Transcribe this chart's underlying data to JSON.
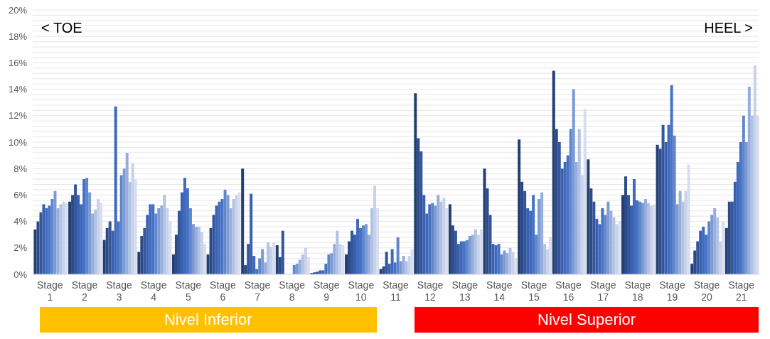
{
  "chart_data": {
    "type": "bar",
    "categories": [
      "Stage 1",
      "Stage 2",
      "Stage 3",
      "Stage 4",
      "Stage 5",
      "Stage 6",
      "Stage 7",
      "Stage 8",
      "Stage 9",
      "Stage 10",
      "Stage 11",
      "Stage 12",
      "Stage 13",
      "Stage 14",
      "Stage 15",
      "Stage 16",
      "Stage 17",
      "Stage 18",
      "Stage 19",
      "Stage 20",
      "Stage 21"
    ],
    "series": [
      {
        "color": "#243f72",
        "values": [
          3.4,
          5.5,
          2.6,
          1.7,
          1.5,
          1.5,
          8.0,
          2.2,
          0.1,
          1.5,
          0.4,
          13.7,
          5.3,
          8.0,
          10.2,
          15.4,
          8.7,
          6.0,
          9.8,
          0.8,
          3.5
        ]
      },
      {
        "color": "#2b4a86",
        "values": [
          4.0,
          6.0,
          3.5,
          2.9,
          3.0,
          3.5,
          0.7,
          1.3,
          0.15,
          2.5,
          0.6,
          10.3,
          3.7,
          6.5,
          7.0,
          11.0,
          6.5,
          7.4,
          9.5,
          1.8,
          5.5
        ]
      },
      {
        "color": "#32559b",
        "values": [
          4.7,
          6.8,
          4.0,
          3.5,
          4.8,
          4.5,
          2.3,
          3.3,
          0.2,
          3.3,
          1.7,
          9.3,
          3.3,
          4.5,
          6.3,
          10.0,
          5.5,
          6.0,
          11.3,
          2.5,
          5.5
        ]
      },
      {
        "color": "#3960b0",
        "values": [
          5.3,
          6.0,
          3.3,
          4.5,
          6.2,
          5.2,
          6.1,
          null,
          0.3,
          3.0,
          0.8,
          6.0,
          2.3,
          2.3,
          5.0,
          8.0,
          4.2,
          5.2,
          10.0,
          3.3,
          7.0
        ]
      },
      {
        "color": "#4069bd",
        "values": [
          5.0,
          5.3,
          12.7,
          5.3,
          7.3,
          5.5,
          1.4,
          null,
          0.3,
          4.2,
          1.9,
          4.6,
          2.5,
          2.2,
          4.8,
          8.5,
          3.8,
          7.2,
          11.3,
          3.6,
          8.5
        ]
      },
      {
        "color": "#4472c4",
        "values": [
          5.2,
          7.2,
          4.0,
          5.3,
          6.5,
          5.7,
          0.4,
          null,
          0.8,
          3.5,
          0.9,
          5.3,
          2.5,
          2.3,
          6.0,
          9.0,
          5.0,
          5.6,
          14.3,
          3.0,
          10.0
        ]
      },
      {
        "color": "#5f86cc",
        "values": [
          5.7,
          7.3,
          7.5,
          4.6,
          5.0,
          6.4,
          1.2,
          0.7,
          1.5,
          3.7,
          2.8,
          5.4,
          2.6,
          1.5,
          3.0,
          11.0,
          4.5,
          5.5,
          10.5,
          4.0,
          12.0
        ]
      },
      {
        "color": "#7b9ad4",
        "values": [
          6.3,
          6.2,
          8.0,
          5.0,
          3.8,
          6.0,
          1.9,
          0.8,
          1.6,
          3.8,
          1.0,
          5.2,
          2.9,
          1.8,
          5.7,
          14.0,
          5.5,
          5.4,
          5.3,
          4.5,
          10.0
        ]
      },
      {
        "color": "#97aedc",
        "values": [
          5.0,
          4.6,
          9.2,
          5.2,
          3.6,
          5.0,
          0.9,
          1.1,
          2.3,
          3.0,
          1.4,
          6.0,
          3.0,
          1.6,
          6.2,
          8.5,
          4.8,
          5.7,
          6.3,
          5.0,
          14.2
        ]
      },
      {
        "color": "#b2c2e4",
        "values": [
          5.3,
          4.9,
          7.0,
          6.0,
          3.6,
          5.7,
          2.4,
          1.5,
          3.3,
          5.0,
          1.0,
          5.5,
          3.4,
          2.0,
          2.3,
          11.0,
          4.3,
          5.4,
          5.5,
          4.3,
          12.0
        ]
      },
      {
        "color": "#c8d2ea",
        "values": [
          5.5,
          5.7,
          8.4,
          5.0,
          3.2,
          6.0,
          2.1,
          2.0,
          2.3,
          6.7,
          1.4,
          5.8,
          3.0,
          1.7,
          1.9,
          7.5,
          3.8,
          5.2,
          6.3,
          2.5,
          15.8
        ]
      },
      {
        "color": "#d8deef",
        "values": [
          5.4,
          5.4,
          7.2,
          4.0,
          2.3,
          6.2,
          2.4,
          1.3,
          2.2,
          5.0,
          1.9,
          5.0,
          3.4,
          1.2,
          2.8,
          12.5,
          4.0,
          5.3,
          8.3,
          4.0,
          12.0
        ]
      }
    ],
    "ylim": [
      0,
      20
    ],
    "yticks": [
      {
        "value": 0,
        "label": "0%"
      },
      {
        "value": 0.4,
        "label": null
      },
      {
        "value": 0.8,
        "label": null
      },
      {
        "value": 1.2,
        "label": null
      },
      {
        "value": 1.6,
        "label": null
      },
      {
        "value": 2,
        "label": "2%"
      },
      {
        "value": 2.4,
        "label": null
      },
      {
        "value": 2.8,
        "label": null
      },
      {
        "value": 3.2,
        "label": null
      },
      {
        "value": 3.6,
        "label": null
      },
      {
        "value": 4,
        "label": "4%"
      },
      {
        "value": 4.4,
        "label": null
      },
      {
        "value": 4.8,
        "label": null
      },
      {
        "value": 5.2,
        "label": null
      },
      {
        "value": 5.6,
        "label": null
      },
      {
        "value": 6,
        "label": "6%"
      },
      {
        "value": 6.4,
        "label": null
      },
      {
        "value": 6.8,
        "label": null
      },
      {
        "value": 7.2,
        "label": null
      },
      {
        "value": 7.6,
        "label": null
      },
      {
        "value": 8,
        "label": "8%"
      },
      {
        "value": 8.4,
        "label": null
      },
      {
        "value": 8.8,
        "label": null
      },
      {
        "value": 9.2,
        "label": null
      },
      {
        "value": 9.6,
        "label": null
      },
      {
        "value": 10,
        "label": "10%"
      },
      {
        "value": 10.4,
        "label": null
      },
      {
        "value": 10.8,
        "label": null
      },
      {
        "value": 11.2,
        "label": null
      },
      {
        "value": 11.6,
        "label": null
      },
      {
        "value": 12,
        "label": "12%"
      },
      {
        "value": 12.4,
        "label": null
      },
      {
        "value": 12.8,
        "label": null
      },
      {
        "value": 13.2,
        "label": null
      },
      {
        "value": 13.6,
        "label": null
      },
      {
        "value": 14,
        "label": "14%"
      },
      {
        "value": 14.4,
        "label": null
      },
      {
        "value": 14.8,
        "label": null
      },
      {
        "value": 15.2,
        "label": null
      },
      {
        "value": 15.6,
        "label": null
      },
      {
        "value": 16,
        "label": "16%"
      },
      {
        "value": 16.4,
        "label": null
      },
      {
        "value": 16.8,
        "label": null
      },
      {
        "value": 17.2,
        "label": null
      },
      {
        "value": 17.6,
        "label": null
      },
      {
        "value": 18,
        "label": "18%"
      },
      {
        "value": 18.4,
        "label": null
      },
      {
        "value": 18.8,
        "label": null
      },
      {
        "value": 19.2,
        "label": null
      },
      {
        "value": 19.6,
        "label": null
      },
      {
        "value": 20,
        "label": "20%"
      }
    ],
    "grid": "y",
    "annotations": [
      "< TOE",
      "HEEL >",
      "Nivel Inferior",
      "Nivel Superior"
    ]
  }
}
